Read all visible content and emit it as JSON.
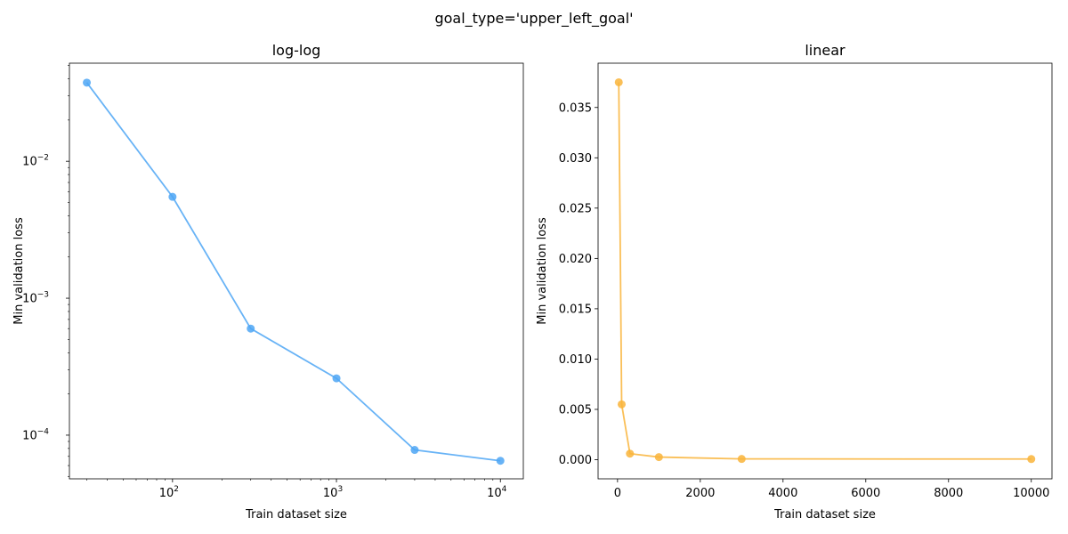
{
  "figure": {
    "suptitle": "goal_type='upper_left_goal'"
  },
  "chart_data": [
    {
      "type": "line",
      "title": "log-log",
      "xlabel": "Train dataset size",
      "ylabel": "Min validation loss",
      "xscale": "log",
      "yscale": "log",
      "xlim": [
        23.5,
        13800
      ],
      "ylim": [
        4.8e-05,
        0.052
      ],
      "xticks": [
        100,
        1000,
        10000
      ],
      "xtick_labels": [
        {
          "base": "10",
          "exp": "2"
        },
        {
          "base": "10",
          "exp": "3"
        },
        {
          "base": "10",
          "exp": "4"
        }
      ],
      "yticks": [
        0.0001,
        0.001,
        0.01
      ],
      "ytick_labels": [
        {
          "base": "10",
          "exp": "−4"
        },
        {
          "base": "10",
          "exp": "−3"
        },
        {
          "base": "10",
          "exp": "−2"
        }
      ],
      "grid": false,
      "color": "#4da6f5",
      "series": [
        {
          "x": [
            30,
            100,
            300,
            1000,
            3000,
            10000
          ],
          "y": [
            0.0375,
            0.0055,
            0.0006,
            0.00026,
            7.8e-05,
            6.5e-05
          ]
        }
      ]
    },
    {
      "type": "line",
      "title": "linear",
      "xlabel": "Train dataset size",
      "ylabel": "Min validation loss",
      "xscale": "linear",
      "yscale": "linear",
      "xlim": [
        -470,
        10500
      ],
      "ylim": [
        -0.0019,
        0.0394
      ],
      "xticks": [
        0,
        2000,
        4000,
        6000,
        8000,
        10000
      ],
      "xtick_labels": [
        "0",
        "2000",
        "4000",
        "6000",
        "8000",
        "10000"
      ],
      "yticks": [
        0.0,
        0.005,
        0.01,
        0.015,
        0.02,
        0.025,
        0.03,
        0.035
      ],
      "ytick_labels": [
        "0.000",
        "0.005",
        "0.010",
        "0.015",
        "0.020",
        "0.025",
        "0.030",
        "0.035"
      ],
      "grid": false,
      "color": "#f9b43a",
      "series": [
        {
          "x": [
            30,
            100,
            300,
            1000,
            3000,
            10000
          ],
          "y": [
            0.0375,
            0.0055,
            0.0006,
            0.00026,
            7.8e-05,
            6.5e-05
          ]
        }
      ]
    }
  ]
}
